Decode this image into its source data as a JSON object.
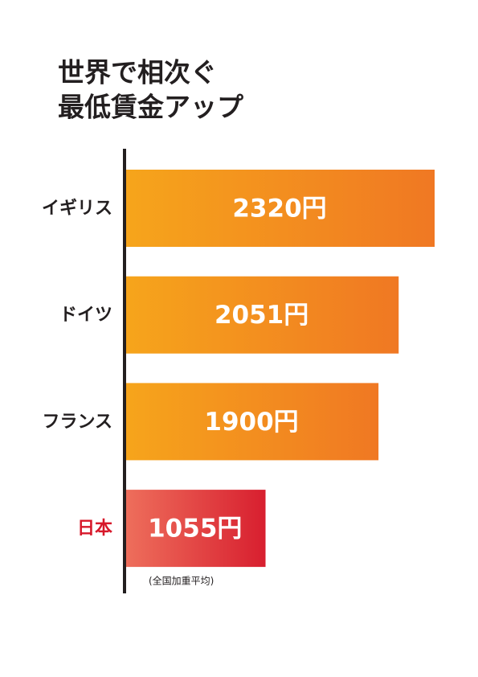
{
  "chart_data": {
    "type": "bar",
    "orientation": "horizontal",
    "title": [
      "世界で相次ぐ",
      "最低賃金アップ"
    ],
    "categories": [
      "イギリス",
      "ドイツ",
      "フランス",
      "日本"
    ],
    "values": [
      2320,
      2051,
      1900,
      1055
    ],
    "value_labels": [
      "2320円",
      "2051円",
      "1900円",
      "1055円"
    ],
    "colors": [
      [
        "#f6a51b",
        "#f07823"
      ],
      [
        "#f6a51b",
        "#f07823"
      ],
      [
        "#f6a51b",
        "#f07823"
      ],
      [
        "#ee6f5c",
        "#d81f2f"
      ]
    ],
    "label_colors": [
      "#231f20",
      "#231f20",
      "#231f20",
      "#d7182a"
    ],
    "annotation": "(全国加重平均)"
  }
}
